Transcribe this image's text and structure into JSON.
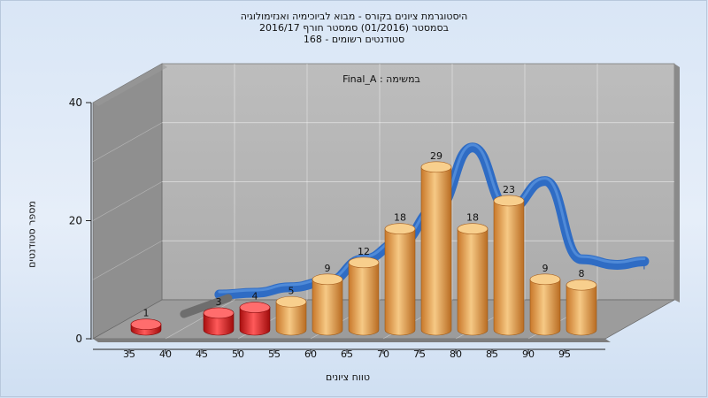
{
  "header": {
    "line1": "היסטוגרמת ציונים בקורס - מבוא לביוכימיה ואנזימולוגיה",
    "line2": "בסמסטר  (01/2016)  סמסטר חורף 2016/17",
    "line3": "סטודנטים רשומים - 168"
  },
  "chart_data": {
    "type": "bar",
    "annotation": "Final_A : במשימה",
    "xlabel": "טווח ציונים",
    "ylabel": "מספר סטודנטים",
    "ylim": [
      0,
      40
    ],
    "yticks": [
      0,
      20,
      40
    ],
    "xticks": [
      "35",
      "40",
      "45",
      "50",
      "55",
      "60",
      "65",
      "70",
      "75",
      "80",
      "85",
      "90",
      "95"
    ],
    "bars": [
      {
        "position": 35,
        "value": 1,
        "color": "#d42020"
      },
      {
        "position": 45,
        "value": 3,
        "color": "#d42020"
      },
      {
        "position": 50,
        "value": 4,
        "color": "#d42020"
      },
      {
        "position": 55,
        "value": 5,
        "color": "#e8a24a"
      },
      {
        "position": 60,
        "value": 9,
        "color": "#e8a24a"
      },
      {
        "position": 65,
        "value": 12,
        "color": "#e8a24a"
      },
      {
        "position": 70,
        "value": 18,
        "color": "#e8a24a"
      },
      {
        "position": 75,
        "value": 29,
        "color": "#e8a24a"
      },
      {
        "position": 80,
        "value": 18,
        "color": "#e8a24a"
      },
      {
        "position": 85,
        "value": 23,
        "color": "#e8a24a"
      },
      {
        "position": 90,
        "value": 9,
        "color": "#e8a24a"
      },
      {
        "position": 95,
        "value": 8,
        "color": "#e8a24a"
      }
    ],
    "trend": [
      {
        "x": 45,
        "y": 3
      },
      {
        "x": 50,
        "y": 4
      },
      {
        "x": 55,
        "y": 5
      },
      {
        "x": 60,
        "y": 9
      },
      {
        "x": 65,
        "y": 12
      },
      {
        "x": 70,
        "y": 18
      },
      {
        "x": 75,
        "y": 29
      },
      {
        "x": 80,
        "y": 18
      },
      {
        "x": 85,
        "y": 23
      },
      {
        "x": 90,
        "y": 9
      },
      {
        "x": 95,
        "y": 8
      }
    ],
    "grid": true,
    "colors": {
      "fail": "#d42020",
      "pass": "#e8a24a",
      "trend": "#2f6cc4",
      "wall": "#b7b7b7",
      "side_wall": "#8c8c8c",
      "floor": "#9a9a9a"
    }
  }
}
